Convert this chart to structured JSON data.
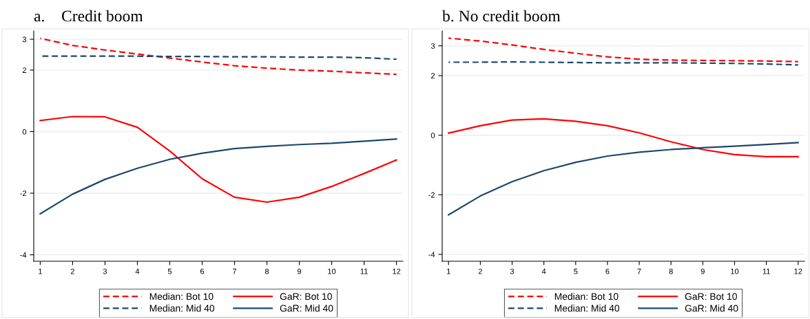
{
  "chart_data": [
    {
      "type": "line",
      "title": "a.    Credit boom",
      "x": [
        1,
        2,
        3,
        4,
        5,
        6,
        7,
        8,
        9,
        10,
        11,
        12
      ],
      "xlim": [
        0.8,
        12.2
      ],
      "xticks": [
        1,
        2,
        3,
        4,
        5,
        6,
        7,
        8,
        9,
        10,
        11,
        12
      ],
      "ylim": [
        -4.21,
        3.27
      ],
      "yticks": [
        -4,
        -2,
        0,
        2,
        3
      ],
      "grid": "y",
      "legend": "bottom",
      "marker": "none",
      "series": [
        {
          "name": "Median: Bot 10",
          "color": "#ff0000",
          "line_style": "dashed",
          "values": [
            3.03,
            2.8,
            2.65,
            2.52,
            2.39,
            2.26,
            2.14,
            2.06,
            2.0,
            1.96,
            1.91,
            1.86
          ]
        },
        {
          "name": "GaR: Bot 10",
          "color": "#ff0000",
          "line_style": "solid",
          "values": [
            0.36,
            0.49,
            0.48,
            0.14,
            -0.63,
            -1.53,
            -2.13,
            -2.29,
            -2.13,
            -1.78,
            -1.36,
            -0.92
          ]
        },
        {
          "name": "Median: Mid 40",
          "color": "#1a476f",
          "line_style": "dashed",
          "values": [
            2.45,
            2.45,
            2.45,
            2.45,
            2.44,
            2.44,
            2.43,
            2.43,
            2.42,
            2.42,
            2.4,
            2.35
          ]
        },
        {
          "name": "GaR: Mid 40",
          "color": "#1a476f",
          "line_style": "solid",
          "values": [
            -2.67,
            -2.03,
            -1.55,
            -1.19,
            -0.9,
            -0.7,
            -0.55,
            -0.48,
            -0.42,
            -0.38,
            -0.31,
            -0.24
          ]
        }
      ]
    },
    {
      "type": "line",
      "title": "b. No credit boom",
      "x": [
        1,
        2,
        3,
        4,
        5,
        6,
        7,
        8,
        9,
        10,
        11,
        12
      ],
      "xlim": [
        0.8,
        12.2
      ],
      "xticks": [
        1,
        2,
        3,
        4,
        5,
        6,
        7,
        8,
        9,
        10,
        11,
        12
      ],
      "ylim": [
        -4.23,
        3.5
      ],
      "yticks": [
        -4,
        -2,
        0,
        2,
        3
      ],
      "grid": "y",
      "legend": "bottom",
      "marker": "none",
      "series": [
        {
          "name": "Median: Bot 10",
          "color": "#ff0000",
          "line_style": "dashed",
          "values": [
            3.26,
            3.16,
            3.03,
            2.88,
            2.75,
            2.63,
            2.55,
            2.52,
            2.51,
            2.5,
            2.49,
            2.47
          ]
        },
        {
          "name": "GaR: Bot 10",
          "color": "#ff0000",
          "line_style": "solid",
          "values": [
            0.07,
            0.32,
            0.51,
            0.55,
            0.47,
            0.32,
            0.08,
            -0.22,
            -0.48,
            -0.65,
            -0.72,
            -0.72
          ]
        },
        {
          "name": "Median: Mid 40",
          "color": "#1a476f",
          "line_style": "dashed",
          "values": [
            2.45,
            2.45,
            2.46,
            2.45,
            2.44,
            2.43,
            2.43,
            2.43,
            2.42,
            2.41,
            2.39,
            2.36
          ]
        },
        {
          "name": "GaR: Mid 40",
          "color": "#1a476f",
          "line_style": "solid",
          "values": [
            -2.67,
            -2.04,
            -1.56,
            -1.19,
            -0.91,
            -0.7,
            -0.57,
            -0.48,
            -0.42,
            -0.37,
            -0.31,
            -0.25
          ]
        }
      ]
    }
  ]
}
